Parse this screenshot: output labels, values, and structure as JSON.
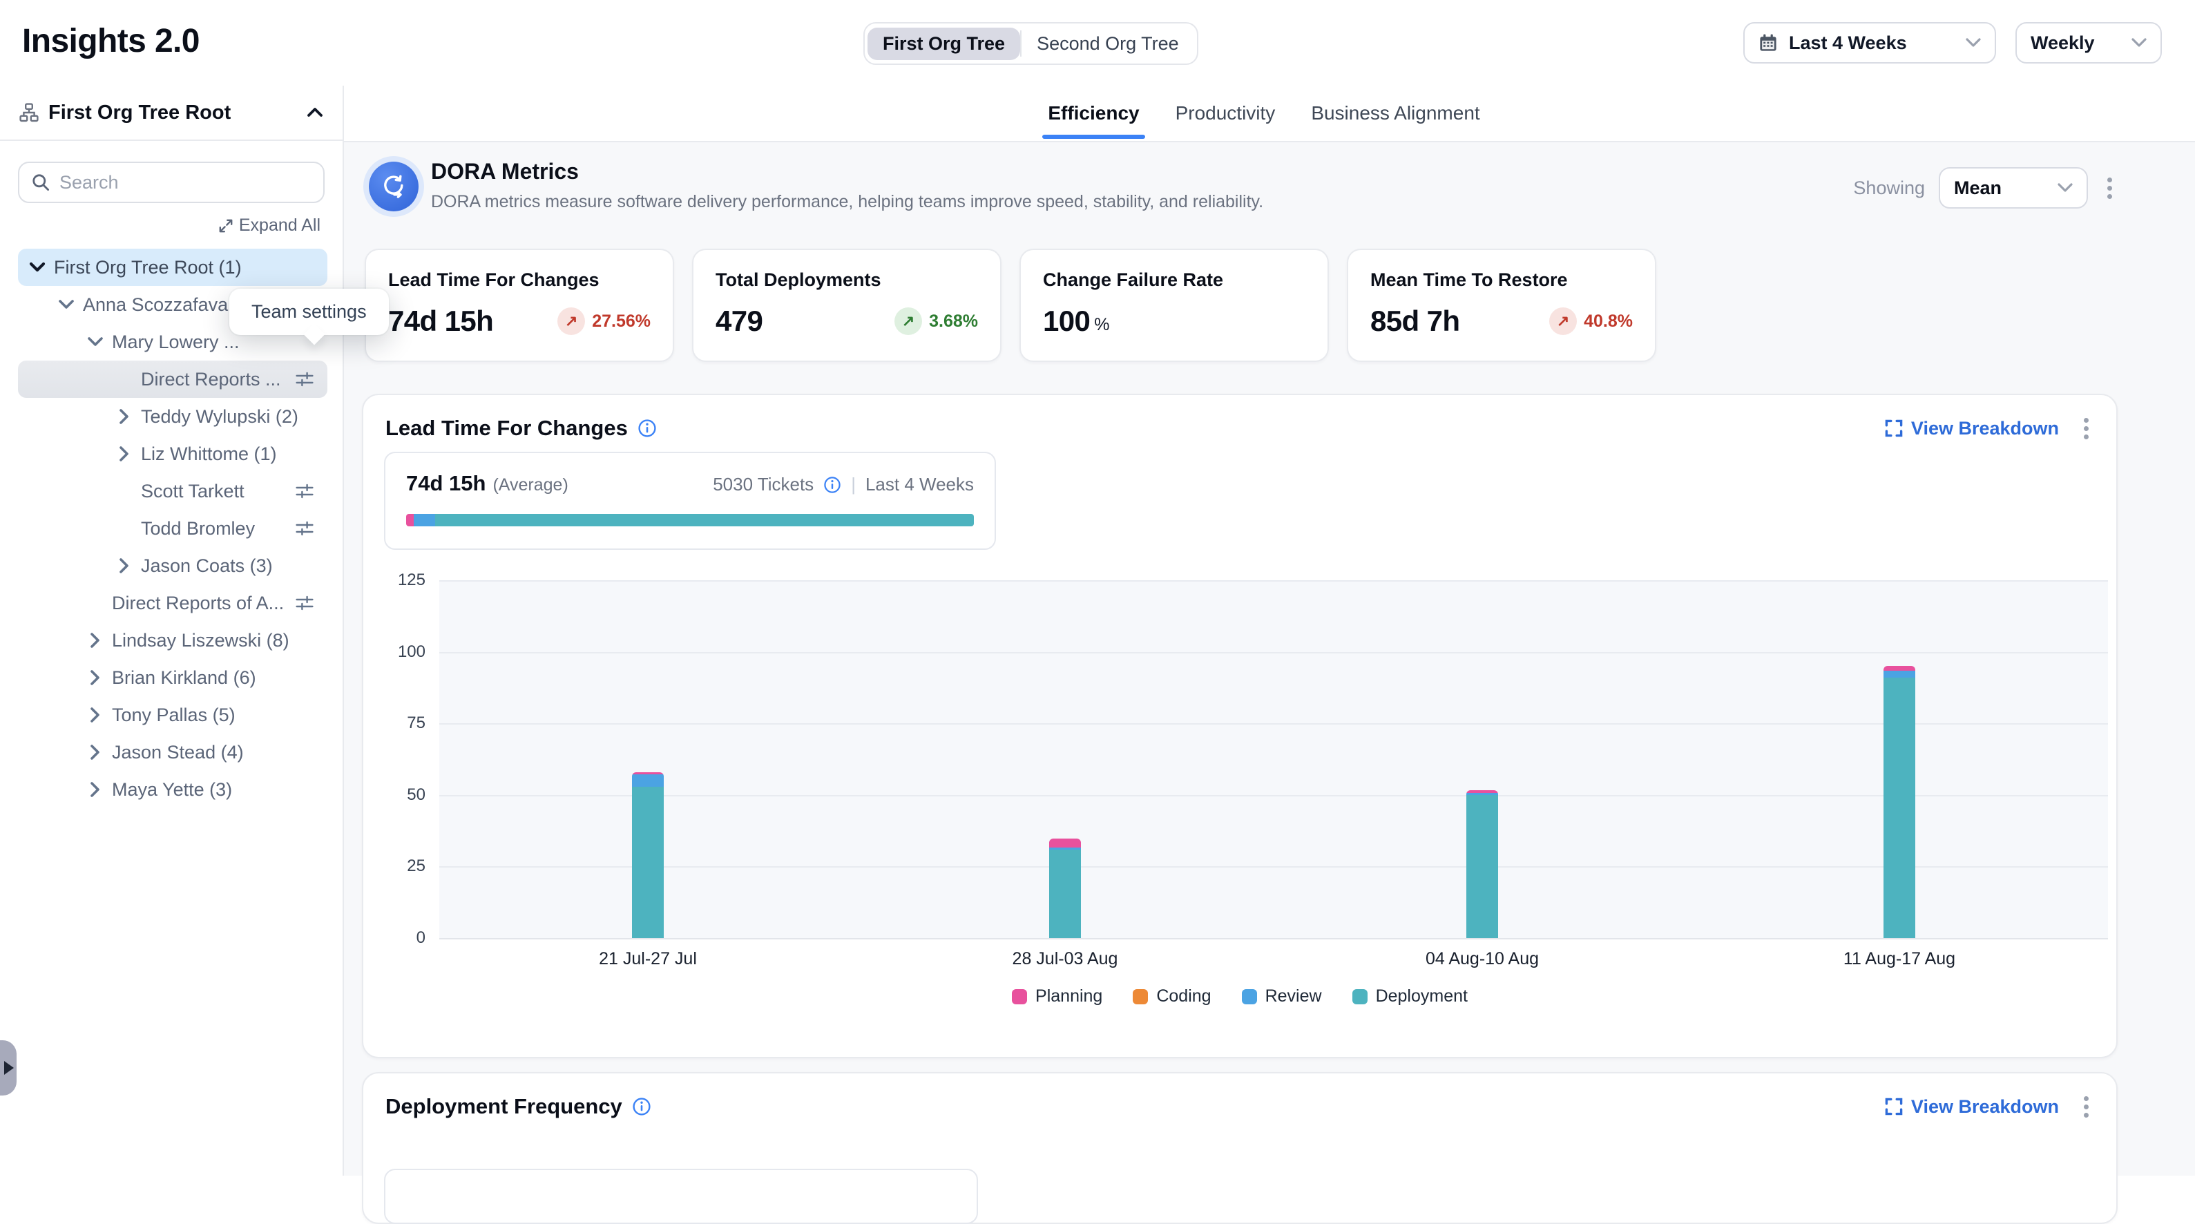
{
  "header": {
    "title": "Insights 2.0",
    "org_toggle": {
      "options": [
        "First Org Tree",
        "Second Org Tree"
      ],
      "selected": "First Org Tree"
    },
    "date_range": {
      "value": "Last 4 Weeks"
    },
    "granularity": {
      "value": "Weekly"
    }
  },
  "sidebar": {
    "title": "First Org Tree Root",
    "search_placeholder": "Search",
    "expand_all_label": "Expand All",
    "tooltip": "Team settings",
    "tree": [
      {
        "label": "First Org Tree Root (1)",
        "level": 0,
        "chevron": "down",
        "state": "selected"
      },
      {
        "label": "Anna Scozzafava...",
        "level": 1,
        "chevron": "down"
      },
      {
        "label": "Mary Lowery ...",
        "level": 2,
        "chevron": "down"
      },
      {
        "label": "Direct Reports ...",
        "level": 3,
        "chevron": null,
        "settings": true,
        "state": "hover"
      },
      {
        "label": "Teddy Wylupski (2)",
        "level": 3,
        "chevron": "right"
      },
      {
        "label": "Liz Whittome (1)",
        "level": 3,
        "chevron": "right"
      },
      {
        "label": "Scott Tarkett",
        "level": 3,
        "chevron": null,
        "settings": true
      },
      {
        "label": "Todd Bromley",
        "level": 3,
        "chevron": null,
        "settings": true
      },
      {
        "label": "Jason Coats (3)",
        "level": 3,
        "chevron": "right"
      },
      {
        "label": "Direct Reports of A...",
        "level": 2,
        "chevron": null,
        "settings": true
      },
      {
        "label": "Lindsay Liszewski (8)",
        "level": 2,
        "chevron": "right"
      },
      {
        "label": "Brian Kirkland (6)",
        "level": 2,
        "chevron": "right"
      },
      {
        "label": "Tony Pallas (5)",
        "level": 2,
        "chevron": "right"
      },
      {
        "label": "Jason Stead (4)",
        "level": 2,
        "chevron": "right"
      },
      {
        "label": "Maya Yette (3)",
        "level": 2,
        "chevron": "right"
      }
    ]
  },
  "tabs": {
    "items": [
      "Efficiency",
      "Productivity",
      "Business Alignment"
    ],
    "active": "Efficiency"
  },
  "dora": {
    "title": "DORA Metrics",
    "description": "DORA metrics measure software delivery performance, helping teams improve speed, stability, and reliability.",
    "showing_label": "Showing",
    "showing_value": "Mean"
  },
  "metric_cards": [
    {
      "title": "Lead Time For Changes",
      "value": "74d 15h",
      "delta": {
        "text": "27.56%",
        "direction": "up",
        "tone": "negative"
      }
    },
    {
      "title": "Total Deployments",
      "value": "479",
      "delta": {
        "text": "3.68%",
        "direction": "up",
        "tone": "positive"
      }
    },
    {
      "title": "Change Failure Rate",
      "value": "100",
      "suffix": "%"
    },
    {
      "title": "Mean Time To Restore",
      "value": "85d 7h",
      "delta": {
        "text": "40.8%",
        "direction": "up",
        "tone": "negative"
      }
    }
  ],
  "lead_time_section": {
    "title": "Lead Time For Changes",
    "view_breakdown_label": "View Breakdown",
    "average_value": "74d 15h",
    "average_label": "(Average)",
    "tickets": "5030 Tickets",
    "period": "Last 4 Weeks",
    "distribution_pct": {
      "planning": 1.3,
      "coding": 0,
      "review": 3.8,
      "deployment": 94.9
    }
  },
  "chart_data": {
    "type": "bar",
    "stacked": true,
    "title": "Lead Time For Changes",
    "categories": [
      "21 Jul-27 Jul",
      "28 Jul-03 Aug",
      "04 Aug-10 Aug",
      "11 Aug-17 Aug"
    ],
    "series": [
      {
        "name": "Planning",
        "color": "#e8519d",
        "values": [
          0.8,
          3.2,
          0.9,
          1.8
        ]
      },
      {
        "name": "Coding",
        "color": "#ed8936",
        "values": [
          0,
          0,
          0,
          0
        ]
      },
      {
        "name": "Review",
        "color": "#4ba3e3",
        "values": [
          4.3,
          0.5,
          0.7,
          2.4
        ]
      },
      {
        "name": "Deployment",
        "color": "#4db3bf",
        "values": [
          52.8,
          31.0,
          50.0,
          91.0
        ]
      }
    ],
    "ylim": [
      0,
      125
    ],
    "ytick_step": 25,
    "grid": true,
    "legend_position": "bottom"
  },
  "deployment_section": {
    "title": "Deployment Frequency",
    "view_breakdown_label": "View Breakdown"
  },
  "colors": {
    "accent_blue": "#2e6bd8",
    "tab_underline": "#3b82f6",
    "selected_row": "#d8ebfb",
    "planning": "#e8519d",
    "coding": "#ed8936",
    "review": "#4ba3e3",
    "deployment": "#4db3bf",
    "negative_red": "#c0392b",
    "positive_green": "#2e7d32"
  }
}
